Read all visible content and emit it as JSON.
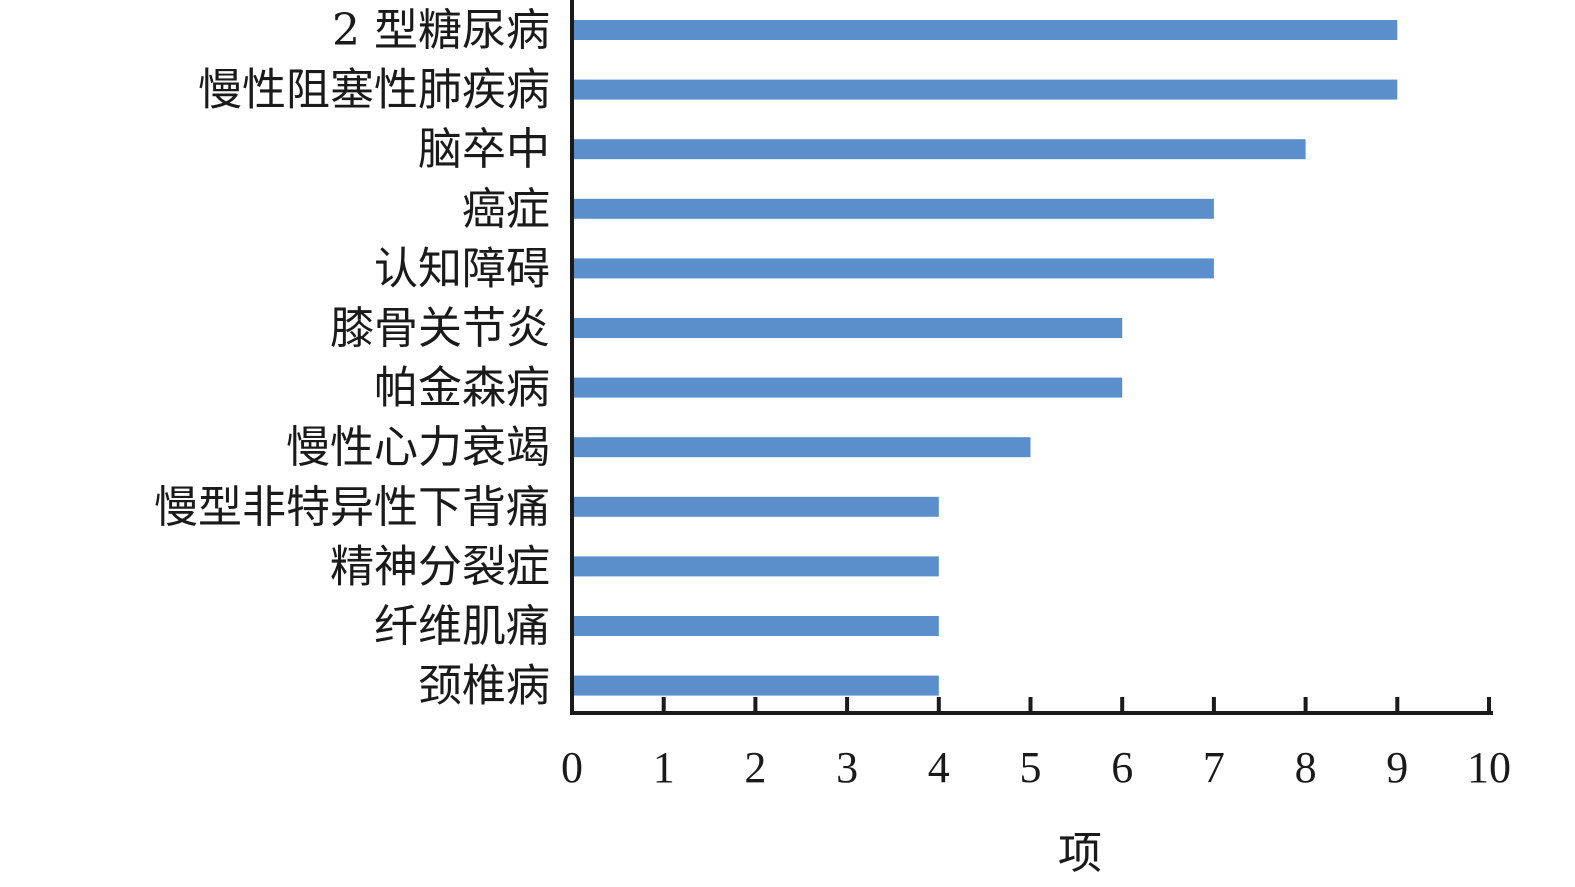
{
  "chart_data": {
    "type": "bar",
    "orientation": "horizontal",
    "categories": [
      "2 型糖尿病",
      "慢性阻塞性肺疾病",
      "脑卒中",
      "癌症",
      "认知障碍",
      "膝骨关节炎",
      "帕金森病",
      "慢性心力衰竭",
      "慢型非特异性下背痛",
      "精神分裂症",
      "纤维肌痛",
      "颈椎病"
    ],
    "values": [
      9,
      9,
      8,
      7,
      7,
      6,
      6,
      5,
      4,
      4,
      4,
      4
    ],
    "xlabel": "项",
    "xlim": [
      0,
      10
    ],
    "xticks": [
      "0",
      "1",
      "2",
      "3",
      "4",
      "5",
      "6",
      "7",
      "8",
      "9",
      "10"
    ],
    "bar_color": "#5b8fcb",
    "grid": false,
    "legend": "none"
  }
}
